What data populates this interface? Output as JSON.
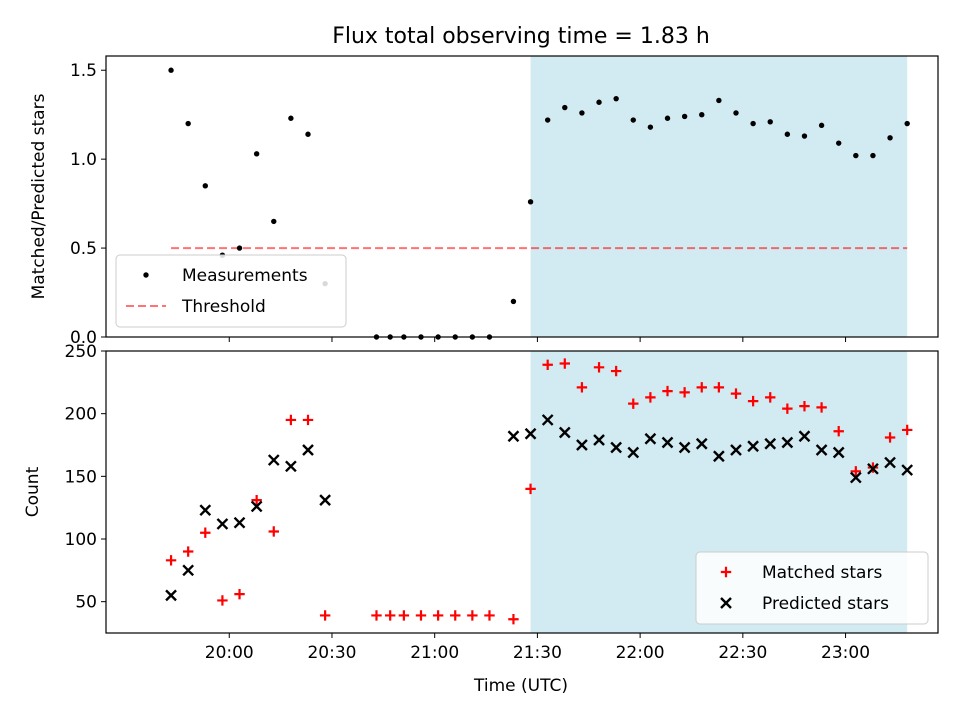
{
  "chart_data": {
    "type": "scatter",
    "title": "Flux total observing time = 1.83 h",
    "xlabel": "Time (UTC)",
    "x_tick_labels": [
      "20:00",
      "20:30",
      "21:00",
      "21:30",
      "22:00",
      "22:30",
      "23:00"
    ],
    "panels": [
      {
        "ylabel": "Matched/Predicted stars",
        "ylim": [
          0,
          1.58
        ],
        "y_tick_labels": [
          "0.0",
          "0.5",
          "1.0",
          "1.5"
        ],
        "legend_position": "lower left",
        "shaded_region": {
          "x_start": "21:28",
          "x_end": "23:18",
          "color": "#add8e6"
        },
        "threshold": {
          "name": "Threshold",
          "value": 0.5,
          "x_start": "19:43",
          "x_end": "23:18",
          "color": "#ff0000"
        },
        "series": [
          {
            "name": "Measurements",
            "marker": "dot",
            "color": "#000000",
            "x": [
              "19:43",
              "19:48",
              "19:53",
              "19:58",
              "20:03",
              "20:08",
              "20:13",
              "20:18",
              "20:23",
              "20:28",
              "20:43",
              "20:47",
              "20:51",
              "20:56",
              "21:01",
              "21:06",
              "21:11",
              "21:16",
              "21:23",
              "21:28",
              "21:33",
              "21:38",
              "21:43",
              "21:48",
              "21:53",
              "21:58",
              "22:03",
              "22:08",
              "22:13",
              "22:18",
              "22:23",
              "22:28",
              "22:33",
              "22:38",
              "22:43",
              "22:48",
              "22:53",
              "22:58",
              "23:03",
              "23:08",
              "23:13",
              "23:18"
            ],
            "y": [
              1.5,
              1.2,
              0.85,
              0.46,
              0.5,
              1.03,
              0.65,
              1.23,
              1.14,
              0.3,
              0,
              0,
              0,
              0,
              0,
              0,
              0,
              0,
              0.2,
              0.76,
              1.22,
              1.29,
              1.26,
              1.32,
              1.34,
              1.22,
              1.18,
              1.23,
              1.24,
              1.25,
              1.33,
              1.26,
              1.2,
              1.21,
              1.14,
              1.13,
              1.19,
              1.09,
              1.02,
              1.02,
              1.12,
              1.2
            ]
          }
        ]
      },
      {
        "ylabel": "Count",
        "ylim": [
          25,
          250
        ],
        "y_tick_labels": [
          "50",
          "100",
          "150",
          "200",
          "250"
        ],
        "legend_position": "lower right",
        "shaded_region": {
          "x_start": "21:28",
          "x_end": "23:18",
          "color": "#add8e6"
        },
        "series": [
          {
            "name": "Matched stars",
            "marker": "plus",
            "color": "#ff0000",
            "x": [
              "19:43",
              "19:48",
              "19:53",
              "19:58",
              "20:03",
              "20:08",
              "20:13",
              "20:18",
              "20:23",
              "20:28",
              "20:43",
              "20:47",
              "20:51",
              "20:56",
              "21:01",
              "21:06",
              "21:11",
              "21:16",
              "21:23",
              "21:28",
              "21:33",
              "21:38",
              "21:43",
              "21:48",
              "21:53",
              "21:58",
              "22:03",
              "22:08",
              "22:13",
              "22:18",
              "22:23",
              "22:28",
              "22:33",
              "22:38",
              "22:43",
              "22:48",
              "22:53",
              "22:58",
              "23:03",
              "23:08",
              "23:13",
              "23:18"
            ],
            "y": [
              83,
              90,
              105,
              51,
              56,
              131,
              106,
              195,
              195,
              39,
              39,
              39,
              39,
              39,
              39,
              39,
              39,
              39,
              36,
              140,
              239,
              240,
              221,
              237,
              234,
              208,
              213,
              218,
              217,
              221,
              221,
              216,
              210,
              213,
              204,
              206,
              205,
              186,
              154,
              157,
              181,
              187
            ]
          },
          {
            "name": "Predicted stars",
            "marker": "x",
            "color": "#000000",
            "x": [
              "19:43",
              "19:48",
              "19:53",
              "19:58",
              "20:03",
              "20:08",
              "20:13",
              "20:18",
              "20:23",
              "20:28",
              "21:23",
              "21:28",
              "21:33",
              "21:38",
              "21:43",
              "21:48",
              "21:53",
              "21:58",
              "22:03",
              "22:08",
              "22:13",
              "22:18",
              "22:23",
              "22:28",
              "22:33",
              "22:38",
              "22:43",
              "22:48",
              "22:53",
              "22:58",
              "23:03",
              "23:08",
              "23:13",
              "23:18"
            ],
            "y": [
              55,
              75,
              123,
              112,
              113,
              126,
              163,
              158,
              171,
              131,
              182,
              184,
              195,
              185,
              175,
              179,
              173,
              169,
              180,
              177,
              173,
              176,
              166,
              171,
              174,
              176,
              177,
              182,
              171,
              169,
              149,
              156,
              161,
              155
            ]
          }
        ]
      }
    ]
  }
}
